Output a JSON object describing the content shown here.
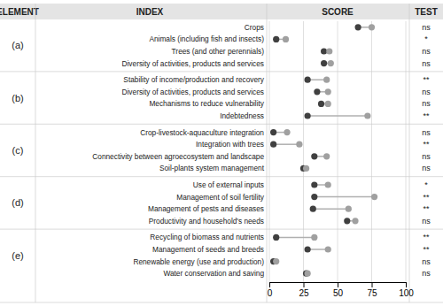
{
  "chart_data": {
    "type": "dumbbell",
    "headers": [
      "ELEMENT",
      "INDEX",
      "SCORE",
      "TEST"
    ],
    "categories": [
      "Crops",
      "Animals (including fish and insects)",
      "Trees (and other perennials)",
      "Diversity of activities, products and services",
      "Stability of income/production and recovery",
      "Diversity of activities, products and services",
      "Mechanisms to reduce vulnerability",
      "Indebtedness",
      "Crop-livestock-aquaculture integration",
      "Integration with trees",
      "Connectivity between agroecosystem and landscape",
      "Soil-plants system management",
      "Use of external inputs",
      "Management of soil fertility",
      "Management of pests and diseases",
      "Productivity and household's needs",
      "Recycling of biomass and nutrients",
      "Management of seeds and breeds",
      "Renewable energy (use and production)",
      "Water conservation and saving"
    ],
    "groups": [
      "(a)",
      "(b)",
      "(c)",
      "(d)",
      "(e)"
    ],
    "group_index": [
      0,
      0,
      0,
      0,
      1,
      1,
      1,
      1,
      2,
      2,
      2,
      2,
      3,
      3,
      3,
      3,
      4,
      4,
      4,
      4
    ],
    "series": [
      {
        "color": "#404040",
        "values": [
          65,
          5,
          40,
          40,
          28,
          35,
          38,
          28,
          3,
          3,
          33,
          25,
          33,
          33,
          32,
          57,
          5,
          28,
          3,
          27
        ]
      },
      {
        "color": "#a0a0a0",
        "values": [
          75,
          12,
          44,
          45,
          42,
          43,
          43,
          72,
          13,
          22,
          42,
          27,
          43,
          77,
          58,
          63,
          33,
          43,
          5,
          28
        ]
      }
    ],
    "annotations": [
      "ns",
      "*",
      "ns",
      "ns",
      "**",
      "ns",
      "ns",
      "**",
      "ns",
      "**",
      "ns",
      "ns",
      "*",
      "**",
      "**",
      "ns",
      "**",
      "**",
      "ns",
      "ns"
    ],
    "color": "#b0b0b0",
    "xlim": [
      0,
      100
    ],
    "xticks": [
      0,
      25,
      50,
      75,
      100
    ],
    "grid": true
  }
}
